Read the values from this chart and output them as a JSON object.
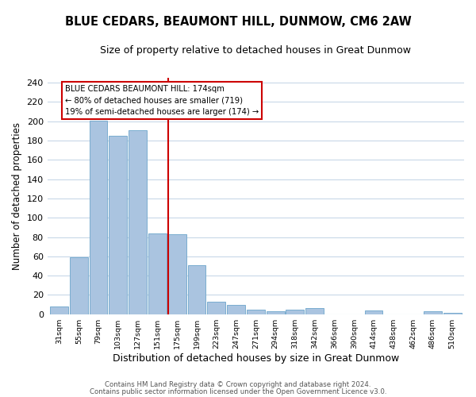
{
  "title": "BLUE CEDARS, BEAUMONT HILL, DUNMOW, CM6 2AW",
  "subtitle": "Size of property relative to detached houses in Great Dunmow",
  "xlabel": "Distribution of detached houses by size in Great Dunmow",
  "ylabel": "Number of detached properties",
  "bar_labels": [
    "31sqm",
    "55sqm",
    "79sqm",
    "103sqm",
    "127sqm",
    "151sqm",
    "175sqm",
    "199sqm",
    "223sqm",
    "247sqm",
    "271sqm",
    "294sqm",
    "318sqm",
    "342sqm",
    "366sqm",
    "390sqm",
    "414sqm",
    "438sqm",
    "462sqm",
    "486sqm",
    "510sqm"
  ],
  "bar_heights": [
    8,
    59,
    201,
    185,
    191,
    84,
    83,
    51,
    13,
    10,
    5,
    3,
    5,
    6,
    0,
    0,
    4,
    0,
    0,
    3,
    1
  ],
  "bar_color": "#aac4e0",
  "bar_edge_color": "#7aadd0",
  "property_line_color": "#cc0000",
  "annotation_text": "BLUE CEDARS BEAUMONT HILL: 174sqm\n← 80% of detached houses are smaller (719)\n19% of semi-detached houses are larger (174) →",
  "annotation_box_color": "#ffffff",
  "annotation_box_edge_color": "#cc0000",
  "ylim": [
    0,
    245
  ],
  "yticks": [
    0,
    20,
    40,
    60,
    80,
    100,
    120,
    140,
    160,
    180,
    200,
    220,
    240
  ],
  "footer_line1": "Contains HM Land Registry data © Crown copyright and database right 2024.",
  "footer_line2": "Contains public sector information licensed under the Open Government Licence v3.0.",
  "background_color": "#ffffff",
  "grid_color": "#c8d8e8"
}
